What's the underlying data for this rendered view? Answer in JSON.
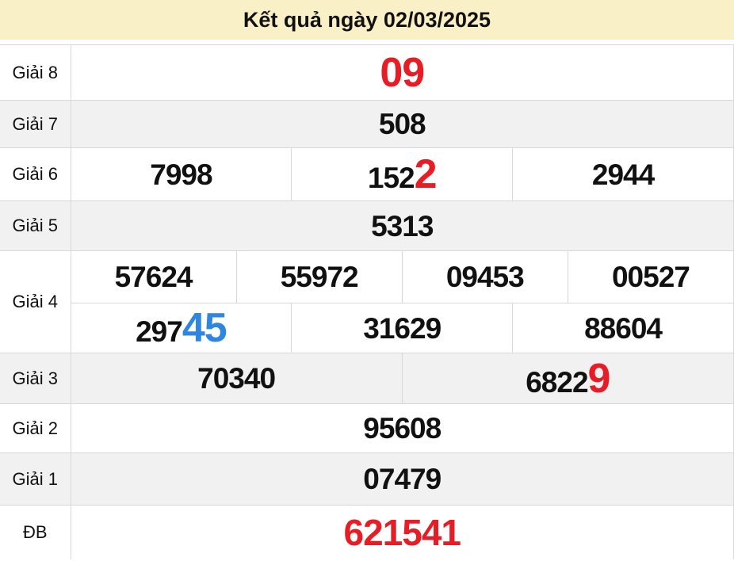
{
  "header": {
    "title": "Kết quả ngày 02/03/2025"
  },
  "colors": {
    "header_bg": "#faf0c8",
    "row_alt_bg": "#f1f1f1",
    "border": "#d8d8d8",
    "text": "#111111",
    "highlight_red": "#e81c25",
    "highlight_blue": "#2e86e0"
  },
  "table": {
    "rows": [
      {
        "name": "prize-8",
        "label": "Giải 8",
        "alt": false,
        "lines": [
          [
            [
              {
                "t": "09",
                "color": "red",
                "size": "xl"
              }
            ]
          ]
        ]
      },
      {
        "name": "prize-7",
        "label": "Giải 7",
        "alt": true,
        "lines": [
          [
            [
              {
                "t": "508"
              }
            ]
          ]
        ]
      },
      {
        "name": "prize-6",
        "label": "Giải 6",
        "alt": false,
        "lines": [
          [
            [
              {
                "t": "7998"
              }
            ],
            [
              {
                "t": "152"
              },
              {
                "t": "2",
                "color": "red",
                "size": "xl"
              }
            ],
            [
              {
                "t": "2944"
              }
            ]
          ]
        ]
      },
      {
        "name": "prize-5",
        "label": "Giải 5",
        "alt": true,
        "lines": [
          [
            [
              {
                "t": "5313"
              }
            ]
          ]
        ]
      },
      {
        "name": "prize-4",
        "label": "Giải 4",
        "alt": false,
        "lines": [
          [
            [
              {
                "t": "57624"
              }
            ],
            [
              {
                "t": "55972"
              }
            ],
            [
              {
                "t": "09453"
              }
            ],
            [
              {
                "t": "00527"
              }
            ]
          ],
          [
            [
              {
                "t": "297"
              },
              {
                "t": "45",
                "color": "blue",
                "size": "xl"
              }
            ],
            [
              {
                "t": "31629"
              }
            ],
            [
              {
                "t": "88604"
              }
            ]
          ]
        ]
      },
      {
        "name": "prize-3",
        "label": "Giải 3",
        "alt": true,
        "lines": [
          [
            [
              {
                "t": "70340"
              }
            ],
            [
              {
                "t": "6822"
              },
              {
                "t": "9",
                "color": "red",
                "size": "xl"
              }
            ]
          ]
        ]
      },
      {
        "name": "prize-2",
        "label": "Giải 2",
        "alt": false,
        "lines": [
          [
            [
              {
                "t": "95608"
              }
            ]
          ]
        ]
      },
      {
        "name": "prize-1",
        "label": "Giải 1",
        "alt": true,
        "lines": [
          [
            [
              {
                "t": "07479"
              }
            ]
          ]
        ]
      },
      {
        "name": "prize-db",
        "label": "ĐB",
        "alt": false,
        "lines": [
          [
            [
              {
                "t": "621541",
                "color": "red",
                "size": "lg"
              }
            ]
          ]
        ]
      }
    ]
  }
}
